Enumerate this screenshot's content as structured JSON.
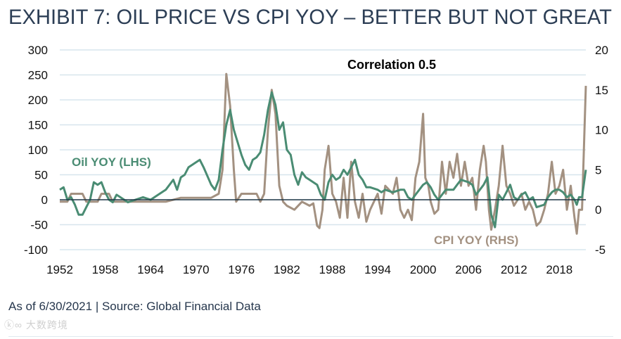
{
  "title": "EXHIBIT 7: OIL PRICE VS CPI YOY – BETTER BUT NOT GREAT",
  "footer": "As of 6/30/2021 | Source: Global Financial Data",
  "watermark": "大数跨境",
  "chart_data": {
    "type": "line",
    "title": "EXHIBIT 7: OIL PRICE VS CPI YOY – BETTER BUT NOT GREAT",
    "annotation": "Correlation 0.5",
    "x_ticks": [
      "1952",
      "1958",
      "1964",
      "1970",
      "1976",
      "1982",
      "1988",
      "1994",
      "2000",
      "2006",
      "2012",
      "2018"
    ],
    "xlim": [
      1952,
      2021.5
    ],
    "y_left": {
      "ticks": [
        "300",
        "250",
        "200",
        "150",
        "100",
        "50",
        "0",
        "-50",
        "-100"
      ],
      "lim": [
        -100,
        300
      ]
    },
    "y_right": {
      "ticks": [
        "20",
        "15",
        "10",
        "5",
        "0",
        "-5"
      ],
      "lim": [
        -5,
        20
      ]
    },
    "grid": true,
    "colors": {
      "oil": "#4a8c73",
      "cpi": "#a39181",
      "zero": "#1d3646",
      "grid": "#d7e5ed"
    },
    "series": [
      {
        "name": "Oil YOY (LHS)",
        "axis": "left",
        "points": [
          [
            1952,
            20
          ],
          [
            1952.5,
            25
          ],
          [
            1953,
            0
          ],
          [
            1953.5,
            5
          ],
          [
            1954,
            -10
          ],
          [
            1954.5,
            -30
          ],
          [
            1955,
            -30
          ],
          [
            1955.5,
            -15
          ],
          [
            1956,
            0
          ],
          [
            1956.5,
            35
          ],
          [
            1957,
            30
          ],
          [
            1957.5,
            35
          ],
          [
            1958,
            15
          ],
          [
            1958.5,
            0
          ],
          [
            1959,
            -5
          ],
          [
            1959.5,
            10
          ],
          [
            1960,
            5
          ],
          [
            1960.5,
            0
          ],
          [
            1961,
            -5
          ],
          [
            1962,
            0
          ],
          [
            1963,
            5
          ],
          [
            1964,
            0
          ],
          [
            1965,
            10
          ],
          [
            1966,
            20
          ],
          [
            1967,
            40
          ],
          [
            1967.5,
            20
          ],
          [
            1968,
            45
          ],
          [
            1968.5,
            50
          ],
          [
            1969,
            65
          ],
          [
            1970,
            75
          ],
          [
            1970.5,
            80
          ],
          [
            1971,
            65
          ],
          [
            1972,
            30
          ],
          [
            1972.5,
            20
          ],
          [
            1973,
            40
          ],
          [
            1973.5,
            100
          ],
          [
            1974,
            150
          ],
          [
            1974.5,
            180
          ],
          [
            1975,
            140
          ],
          [
            1976,
            90
          ],
          [
            1976.5,
            70
          ],
          [
            1977,
            60
          ],
          [
            1977.5,
            80
          ],
          [
            1978,
            85
          ],
          [
            1978.5,
            95
          ],
          [
            1979,
            130
          ],
          [
            1979.5,
            180
          ],
          [
            1980,
            215
          ],
          [
            1980.5,
            190
          ],
          [
            1981,
            140
          ],
          [
            1981.5,
            155
          ],
          [
            1982,
            100
          ],
          [
            1982.5,
            90
          ],
          [
            1983,
            50
          ],
          [
            1983.5,
            30
          ],
          [
            1984,
            55
          ],
          [
            1984.5,
            45
          ],
          [
            1985,
            40
          ],
          [
            1986,
            30
          ],
          [
            1986.5,
            10
          ],
          [
            1987,
            0
          ],
          [
            1987.5,
            35
          ],
          [
            1988,
            50
          ],
          [
            1988.5,
            40
          ],
          [
            1989,
            45
          ],
          [
            1989.5,
            60
          ],
          [
            1990,
            50
          ],
          [
            1990.5,
            65
          ],
          [
            1991,
            80
          ],
          [
            1991.5,
            50
          ],
          [
            1992,
            40
          ],
          [
            1992.5,
            25
          ],
          [
            1993,
            25
          ],
          [
            1994,
            20
          ],
          [
            1994.5,
            15
          ],
          [
            1995,
            20
          ],
          [
            1996,
            15
          ],
          [
            1997,
            20
          ],
          [
            1997.5,
            20
          ],
          [
            1998,
            5
          ],
          [
            1998.5,
            0
          ],
          [
            1999,
            10
          ],
          [
            2000,
            30
          ],
          [
            2000.5,
            35
          ],
          [
            2001,
            25
          ],
          [
            2001.5,
            10
          ],
          [
            2002,
            0
          ],
          [
            2002.5,
            10
          ],
          [
            2003,
            20
          ],
          [
            2003.5,
            20
          ],
          [
            2004,
            20
          ],
          [
            2004.5,
            30
          ],
          [
            2005,
            40
          ],
          [
            2006,
            35
          ],
          [
            2006.5,
            30
          ],
          [
            2007,
            10
          ],
          [
            2007.5,
            20
          ],
          [
            2008,
            30
          ],
          [
            2008.5,
            45
          ],
          [
            2009,
            -30
          ],
          [
            2009.5,
            -55
          ],
          [
            2010,
            10
          ],
          [
            2010.5,
            0
          ],
          [
            2011,
            15
          ],
          [
            2011.5,
            30
          ],
          [
            2012,
            5
          ],
          [
            2012.5,
            0
          ],
          [
            2013,
            10
          ],
          [
            2013.5,
            15
          ],
          [
            2014,
            0
          ],
          [
            2014.5,
            5
          ],
          [
            2015,
            -15
          ],
          [
            2016,
            -10
          ],
          [
            2016.5,
            5
          ],
          [
            2017,
            15
          ],
          [
            2017.5,
            20
          ],
          [
            2018,
            20
          ],
          [
            2018.5,
            15
          ],
          [
            2019,
            5
          ],
          [
            2019.5,
            10
          ],
          [
            2020,
            0
          ],
          [
            2020.3,
            -10
          ],
          [
            2020.6,
            5
          ],
          [
            2021,
            5
          ],
          [
            2021.5,
            60
          ]
        ]
      },
      {
        "name": "CPI YOY (RHS)",
        "axis": "right",
        "points": [
          [
            1952,
            1
          ],
          [
            1953,
            1
          ],
          [
            1953.5,
            2
          ],
          [
            1955,
            2
          ],
          [
            1955.5,
            1
          ],
          [
            1957,
            1
          ],
          [
            1957.5,
            2
          ],
          [
            1958.5,
            2
          ],
          [
            1959,
            1
          ],
          [
            1966,
            1
          ],
          [
            1968,
            1.5
          ],
          [
            1970,
            1.5
          ],
          [
            1972,
            1.5
          ],
          [
            1973,
            2
          ],
          [
            1973.5,
            5
          ],
          [
            1974,
            17
          ],
          [
            1974.5,
            13
          ],
          [
            1975,
            5
          ],
          [
            1975.3,
            1
          ],
          [
            1976,
            2
          ],
          [
            1977,
            2
          ],
          [
            1978,
            2
          ],
          [
            1978.5,
            1
          ],
          [
            1979,
            2
          ],
          [
            1979.5,
            10
          ],
          [
            1980,
            15
          ],
          [
            1980.5,
            12
          ],
          [
            1981,
            3
          ],
          [
            1981.5,
            1
          ],
          [
            1982,
            0.5
          ],
          [
            1983,
            0
          ],
          [
            1984,
            1
          ],
          [
            1985,
            0.5
          ],
          [
            1985.5,
            0.8
          ],
          [
            1986,
            -2
          ],
          [
            1986.3,
            -2.3
          ],
          [
            1986.7,
            0
          ],
          [
            1987,
            5
          ],
          [
            1987.5,
            8
          ],
          [
            1988,
            2
          ],
          [
            1988.5,
            1
          ],
          [
            1989,
            -1
          ],
          [
            1989.5,
            4
          ],
          [
            1990,
            -1
          ],
          [
            1990.5,
            6
          ],
          [
            1991,
            1
          ],
          [
            1991.5,
            -1
          ],
          [
            1992,
            2
          ],
          [
            1992.5,
            -1.5
          ],
          [
            1993,
            0
          ],
          [
            1994,
            2
          ],
          [
            1994.5,
            -0.5
          ],
          [
            1995,
            3
          ],
          [
            1996,
            2
          ],
          [
            1996.5,
            4
          ],
          [
            1997,
            0
          ],
          [
            1997.5,
            -1
          ],
          [
            1998,
            0
          ],
          [
            1998.5,
            -1.3
          ],
          [
            1999,
            4
          ],
          [
            1999.5,
            6
          ],
          [
            2000,
            12
          ],
          [
            2000.3,
            4
          ],
          [
            2000.7,
            3
          ],
          [
            2001,
            1
          ],
          [
            2001.5,
            -0.5
          ],
          [
            2002,
            0
          ],
          [
            2002.5,
            6
          ],
          [
            2003,
            2
          ],
          [
            2003.5,
            6
          ],
          [
            2004,
            4
          ],
          [
            2004.5,
            7
          ],
          [
            2005,
            3
          ],
          [
            2005.5,
            6
          ],
          [
            2006,
            3
          ],
          [
            2006.5,
            4
          ],
          [
            2007,
            0
          ],
          [
            2007.5,
            5
          ],
          [
            2008,
            8
          ],
          [
            2008.3,
            6
          ],
          [
            2008.7,
            0
          ],
          [
            2009,
            -2.5
          ],
          [
            2009.5,
            0
          ],
          [
            2010,
            3
          ],
          [
            2010.5,
            8
          ],
          [
            2011,
            3
          ],
          [
            2011.5,
            2
          ],
          [
            2012,
            0.5
          ],
          [
            2013,
            2
          ],
          [
            2013.5,
            0
          ],
          [
            2014,
            1
          ],
          [
            2014.5,
            0
          ],
          [
            2015,
            -2
          ],
          [
            2015.5,
            -1.5
          ],
          [
            2016,
            0
          ],
          [
            2016.5,
            2
          ],
          [
            2017,
            6
          ],
          [
            2017.5,
            2
          ],
          [
            2018,
            3
          ],
          [
            2018.5,
            5
          ],
          [
            2019,
            0
          ],
          [
            2019.5,
            3
          ],
          [
            2020,
            -1
          ],
          [
            2020.3,
            -3
          ],
          [
            2020.6,
            0
          ],
          [
            2021,
            0
          ],
          [
            2021.5,
            15.5
          ]
        ]
      }
    ]
  }
}
